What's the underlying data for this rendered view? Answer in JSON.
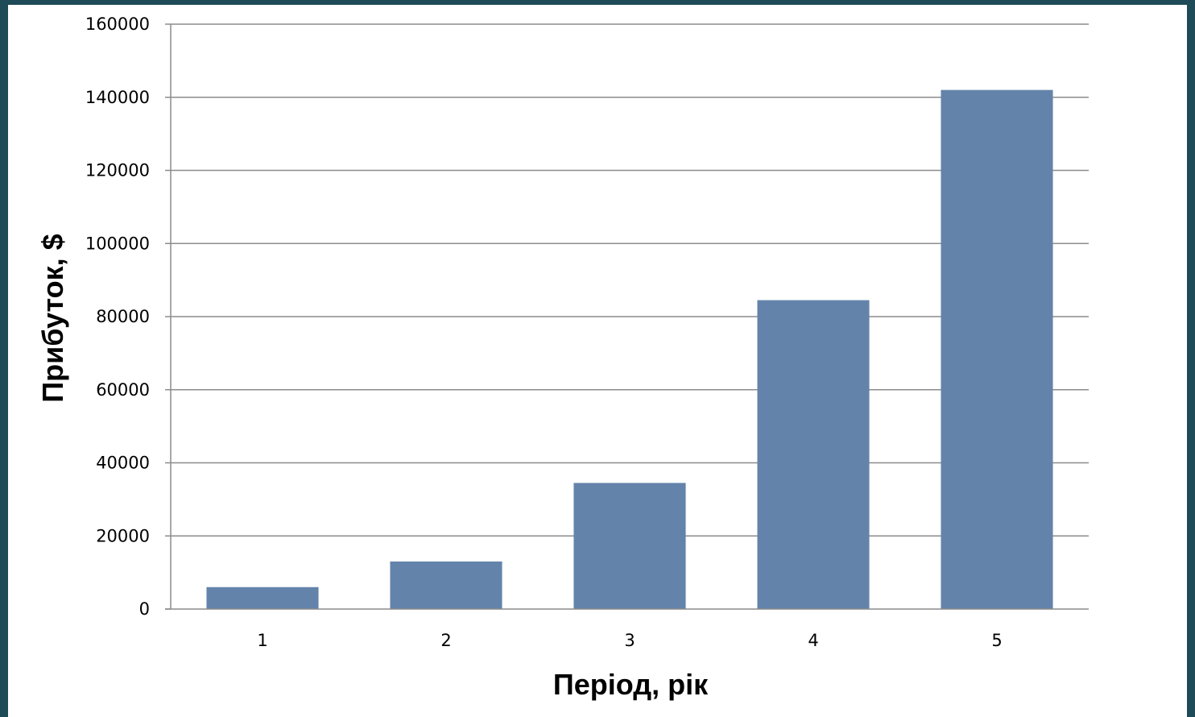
{
  "chart_data": {
    "type": "bar",
    "title": "",
    "xlabel": "Період, рік",
    "ylabel": "Прибуток, $",
    "categories": [
      "1",
      "2",
      "3",
      "4",
      "5"
    ],
    "values": [
      6000,
      13000,
      34500,
      84500,
      142000
    ],
    "ylim": [
      0,
      160000
    ],
    "yticks": [
      0,
      20000,
      40000,
      60000,
      80000,
      100000,
      120000,
      140000,
      160000
    ],
    "ytick_labels": [
      "0",
      "20000",
      "40000",
      "60000",
      "80000",
      "100000",
      "120000",
      "140000",
      "160000"
    ],
    "grid": true,
    "legend": "none",
    "colors": {
      "bar": "#6383aa",
      "grid": "#8c8c8c",
      "frame_background": "#1f4a57"
    }
  }
}
